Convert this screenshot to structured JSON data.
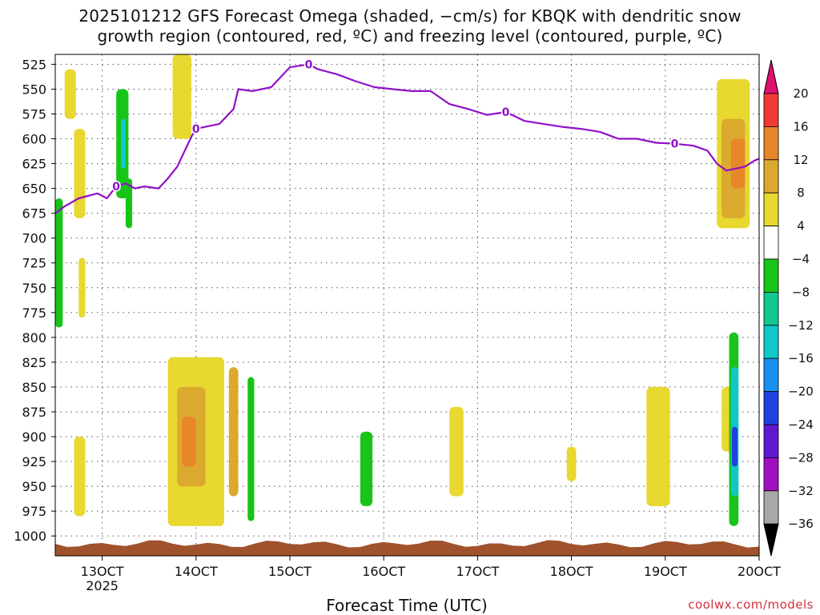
{
  "title": {
    "line1": "2025101212 GFS Forecast Omega (shaded, −cm/s) for KBQK with dendritic snow",
    "line2": "growth region (contoured, red, ºC) and freezing level (contoured, purple, ºC)"
  },
  "xaxis": {
    "title": "Forecast Time (UTC)",
    "ticks": [
      "13OCT",
      "14OCT",
      "15OCT",
      "16OCT",
      "17OCT",
      "18OCT",
      "19OCT",
      "20OCT"
    ],
    "tick_days": [
      13,
      14,
      15,
      16,
      17,
      18,
      19,
      20
    ],
    "year_label": "2025"
  },
  "credit": "coolwx.com/models",
  "chart_data": {
    "type": "heatmap",
    "title": "2025101212 GFS Forecast Omega (shaded, −cm/s) for KBQK with dendritic snow growth region (contoured, red, ºC) and freezing level (contoured, purple, ºC)",
    "xlabel": "Forecast Time (UTC)",
    "ylabel": "",
    "xlim": [
      12.5,
      20.0
    ],
    "ylim": [
      1020,
      515
    ],
    "y_ticks": [
      525,
      550,
      575,
      600,
      625,
      650,
      675,
      700,
      725,
      750,
      775,
      800,
      825,
      850,
      875,
      900,
      925,
      950,
      975,
      1000
    ],
    "grid": true,
    "colorbar": {
      "labels": [
        "20",
        "16",
        "12",
        "8",
        "4",
        "−4",
        "−8",
        "−12",
        "−16",
        "−20",
        "−24",
        "−28",
        "−32",
        "−36"
      ],
      "bins": [
        {
          "range": ">20",
          "color": "#e0106e"
        },
        {
          "range": "16 to 20",
          "color": "#f23a35"
        },
        {
          "range": "12 to 16",
          "color": "#e8862a"
        },
        {
          "range": "8 to 12",
          "color": "#dba92e"
        },
        {
          "range": "4 to 8",
          "color": "#e8d830"
        },
        {
          "range": "−4 to 4",
          "color": "#ffffff"
        },
        {
          "range": "−8 to −4",
          "color": "#18c418"
        },
        {
          "range": "−12 to −8",
          "color": "#10c890"
        },
        {
          "range": "−16 to −12",
          "color": "#10c8c8"
        },
        {
          "range": "−20 to −16",
          "color": "#1890f0"
        },
        {
          "range": "−24 to −20",
          "color": "#2040e0"
        },
        {
          "range": "−28 to −24",
          "color": "#6018d0"
        },
        {
          "range": "−32 to −28",
          "color": "#a010c0"
        },
        {
          "range": "−36 to −32",
          "color": "#a8a8a8"
        },
        {
          "range": "<−36",
          "color": "#000000"
        }
      ]
    },
    "freezing_level": {
      "label": "0",
      "color": "#9010c8",
      "x": [
        12.5,
        12.6,
        12.75,
        12.95,
        13.05,
        13.15,
        13.25,
        13.35,
        13.45,
        13.6,
        13.7,
        13.8,
        13.95,
        14.0,
        14.1,
        14.25,
        14.4,
        14.45,
        14.6,
        14.8,
        15.0,
        15.2,
        15.3,
        15.5,
        15.7,
        15.9,
        16.1,
        16.3,
        16.5,
        16.7,
        16.9,
        17.1,
        17.3,
        17.5,
        17.7,
        17.9,
        18.1,
        18.3,
        18.5,
        18.7,
        18.9,
        19.1,
        19.3,
        19.45,
        19.55,
        19.65,
        19.75,
        19.85,
        19.95,
        20.0
      ],
      "y": [
        675,
        668,
        660,
        655,
        660,
        648,
        645,
        650,
        648,
        650,
        640,
        628,
        598,
        590,
        588,
        585,
        570,
        550,
        552,
        548,
        528,
        525,
        530,
        535,
        542,
        548,
        550,
        552,
        552,
        565,
        570,
        576,
        573,
        582,
        585,
        588,
        590,
        593,
        600,
        600,
        604,
        605,
        607,
        612,
        625,
        632,
        630,
        628,
        622,
        620
      ]
    },
    "omega_regions": [
      {
        "x": [
          12.6,
          12.72
        ],
        "p": [
          530,
          580
        ],
        "value": 5
      },
      {
        "x": [
          12.7,
          12.82
        ],
        "p": [
          590,
          680
        ],
        "value": 5
      },
      {
        "x": [
          12.5,
          12.58
        ],
        "p": [
          660,
          790
        ],
        "value": -6
      },
      {
        "x": [
          13.15,
          13.28
        ],
        "p": [
          550,
          660
        ],
        "value": -6
      },
      {
        "x": [
          13.2,
          13.25
        ],
        "p": [
          580,
          630
        ],
        "value": -14
      },
      {
        "x": [
          13.25,
          13.32
        ],
        "p": [
          640,
          690
        ],
        "value": -6
      },
      {
        "x": [
          12.75,
          12.82
        ],
        "p": [
          720,
          780
        ],
        "value": 5
      },
      {
        "x": [
          12.7,
          12.82
        ],
        "p": [
          900,
          980
        ],
        "value": 5
      },
      {
        "x": [
          13.75,
          13.95
        ],
        "p": [
          515,
          600
        ],
        "value": 5
      },
      {
        "x": [
          13.7,
          14.3
        ],
        "p": [
          820,
          990
        ],
        "value": 5
      },
      {
        "x": [
          13.8,
          14.1
        ],
        "p": [
          850,
          950
        ],
        "value": 10
      },
      {
        "x": [
          13.85,
          14.0
        ],
        "p": [
          880,
          930
        ],
        "value": 14
      },
      {
        "x": [
          14.35,
          14.45
        ],
        "p": [
          830,
          960
        ],
        "value": 10
      },
      {
        "x": [
          14.55,
          14.62
        ],
        "p": [
          840,
          985
        ],
        "value": -6
      },
      {
        "x": [
          15.75,
          15.88
        ],
        "p": [
          895,
          970
        ],
        "value": -6
      },
      {
        "x": [
          16.7,
          16.85
        ],
        "p": [
          870,
          960
        ],
        "value": 5
      },
      {
        "x": [
          17.95,
          18.05
        ],
        "p": [
          910,
          945
        ],
        "value": 5
      },
      {
        "x": [
          18.8,
          19.05
        ],
        "p": [
          850,
          970
        ],
        "value": 5
      },
      {
        "x": [
          19.55,
          19.9
        ],
        "p": [
          540,
          690
        ],
        "value": 5
      },
      {
        "x": [
          19.6,
          19.85
        ],
        "p": [
          580,
          680
        ],
        "value": 9
      },
      {
        "x": [
          19.7,
          19.85
        ],
        "p": [
          600,
          650
        ],
        "value": 13
      },
      {
        "x": [
          19.6,
          19.72
        ],
        "p": [
          850,
          915
        ],
        "value": 5
      },
      {
        "x": [
          19.68,
          19.78
        ],
        "p": [
          795,
          990
        ],
        "value": -6
      },
      {
        "x": [
          19.7,
          19.78
        ],
        "p": [
          830,
          960
        ],
        "value": -14
      },
      {
        "x": [
          19.71,
          19.77
        ],
        "p": [
          890,
          930
        ],
        "value": -22
      }
    ]
  }
}
